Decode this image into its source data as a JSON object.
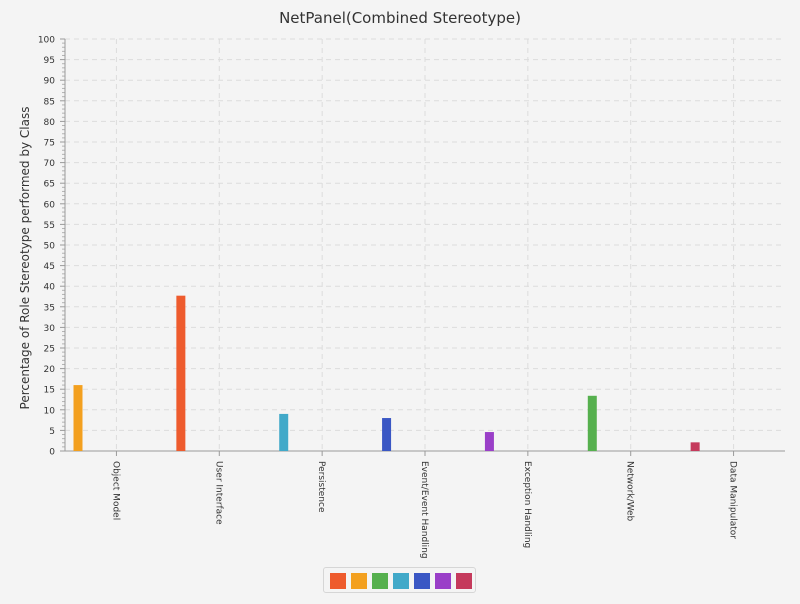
{
  "chart_data": {
    "type": "bar",
    "title": "NetPanel(Combined Stereotype)",
    "xlabel": "",
    "ylabel": "Percentage of Role Stereotype performed by Class",
    "ylim": [
      0,
      100
    ],
    "y_ticks": [
      "0",
      "5",
      "10",
      "15",
      "20",
      "25",
      "30",
      "35",
      "40",
      "45",
      "50",
      "55",
      "60",
      "65",
      "70",
      "75",
      "80",
      "85",
      "90",
      "95",
      "100"
    ],
    "categories": [
      "Object Model",
      "User Interface",
      "Persistence",
      "Event/Event Handling",
      "Exception Handling",
      "Network/Web",
      "Data Manipulator"
    ],
    "bars": [
      {
        "category": "Object Model",
        "value": 16,
        "color": "#f3a01f"
      },
      {
        "category": "User Interface",
        "value": 37.7,
        "color": "#ee5b2d"
      },
      {
        "category": "Persistence",
        "value": 9,
        "color": "#41a9c9"
      },
      {
        "category": "Event/Event Handling",
        "value": 8,
        "color": "#3a57c4"
      },
      {
        "category": "Exception Handling",
        "value": 4.6,
        "color": "#9a3fc8"
      },
      {
        "category": "Network/Web",
        "value": 13.4,
        "color": "#56b04e"
      },
      {
        "category": "Data Manipulator",
        "value": 2.1,
        "color": "#c53a5c"
      }
    ],
    "legend": {
      "placement": "bottom-center",
      "swatches": [
        "#ee5b2d",
        "#f3a01f",
        "#56b04e",
        "#41a9c9",
        "#3a57c4",
        "#9a3fc8",
        "#c53a5c"
      ]
    },
    "grid": true
  }
}
